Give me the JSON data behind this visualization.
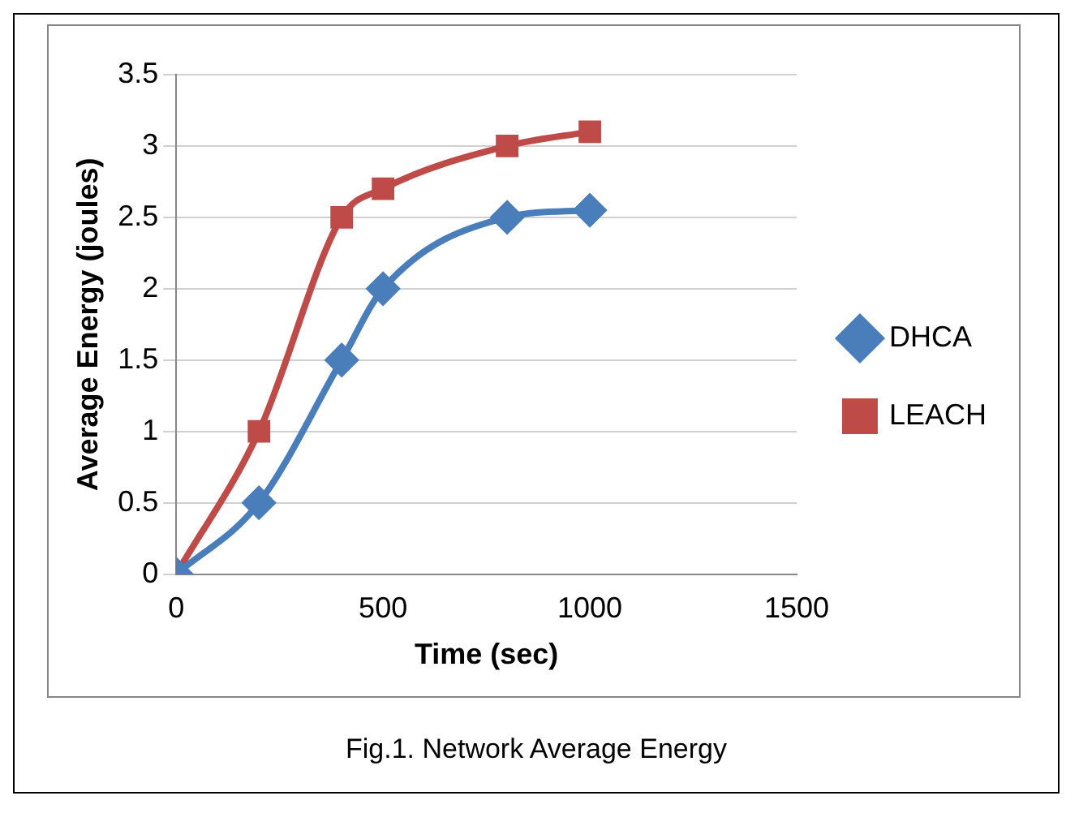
{
  "chart_data": {
    "type": "line",
    "xlabel": "Time (sec)",
    "ylabel": "Average Energy (joules)",
    "xlim": [
      0,
      1500
    ],
    "xticks": [
      0,
      500,
      1000,
      1500
    ],
    "ylim": [
      0,
      3.5
    ],
    "yticks": [
      0,
      0.5,
      1,
      1.5,
      2,
      2.5,
      3,
      3.5
    ],
    "grid": "y",
    "legend": "right",
    "annotations": [
      "Fig.1. Network Average Energy"
    ],
    "series": [
      {
        "name": "DHCA",
        "color": "#4a7ebb",
        "marker": "diamond",
        "x": [
          0,
          200,
          400,
          500,
          800,
          1000
        ],
        "values": [
          0,
          0.5,
          1.5,
          2,
          2.5,
          2.55
        ]
      },
      {
        "name": "LEACH",
        "color": "#be4b48",
        "marker": "square",
        "x": [
          0,
          200,
          400,
          500,
          800,
          1000
        ],
        "values": [
          0,
          1,
          2.5,
          2.7,
          3,
          3.1
        ]
      }
    ]
  }
}
